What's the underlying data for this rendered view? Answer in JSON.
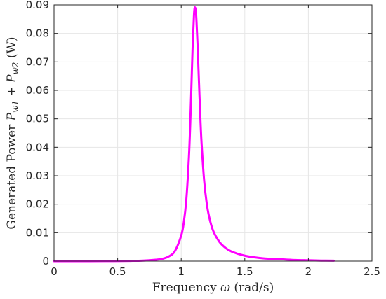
{
  "chart_data": {
    "type": "line",
    "title": "",
    "xlabel": "Frequency ω (rad/s)",
    "ylabel": "Generated Power Pw1 + Pw2 (W)",
    "xlabel_parts": {
      "pre": "Frequency ",
      "sym": "ω",
      "post": " (rad/s)"
    },
    "ylabel_parts": {
      "pre": "Generated Power ",
      "p1": "P",
      "s1": "w1",
      "plus": " + ",
      "p2": "P",
      "s2": "w2",
      "post": " (W)"
    },
    "xlim": [
      0,
      2.5
    ],
    "ylim": [
      0,
      0.09
    ],
    "x_ticks": [
      0,
      0.5,
      1,
      1.5,
      2,
      2.5
    ],
    "x_tick_labels": [
      "0",
      "0.5",
      "1",
      "1.5",
      "2",
      "2.5"
    ],
    "y_ticks": [
      0,
      0.01,
      0.02,
      0.03,
      0.04,
      0.05,
      0.06,
      0.07,
      0.08,
      0.09
    ],
    "y_tick_labels": [
      "0",
      "0.01",
      "0.02",
      "0.03",
      "0.04",
      "0.05",
      "0.06",
      "0.07",
      "0.08",
      "0.09"
    ],
    "grid": true,
    "legend": "none",
    "series": [
      {
        "color": "#ff00ff",
        "x": [
          0,
          0.2,
          0.4,
          0.6,
          0.7,
          0.8,
          0.85,
          0.9,
          0.95,
          1.0,
          1.02,
          1.04,
          1.06,
          1.07,
          1.08,
          1.09,
          1.1,
          1.105,
          1.11,
          1.115,
          1.12,
          1.13,
          1.14,
          1.15,
          1.16,
          1.18,
          1.2,
          1.22,
          1.25,
          1.3,
          1.35,
          1.4,
          1.5,
          1.6,
          1.7,
          1.8,
          1.9,
          2.0,
          2.1,
          2.2
        ],
        "y": [
          0,
          0,
          2e-05,
          0.0001,
          0.0002,
          0.0005,
          0.0008,
          0.0016,
          0.0035,
          0.009,
          0.0135,
          0.0215,
          0.036,
          0.047,
          0.061,
          0.0755,
          0.086,
          0.0888,
          0.089,
          0.0878,
          0.0845,
          0.0745,
          0.0625,
          0.051,
          0.0415,
          0.0285,
          0.0205,
          0.0155,
          0.0108,
          0.0068,
          0.0046,
          0.0033,
          0.0019,
          0.0012,
          0.0008,
          0.0006,
          0.0004,
          0.0003,
          0.0002,
          0.00015
        ]
      }
    ]
  }
}
